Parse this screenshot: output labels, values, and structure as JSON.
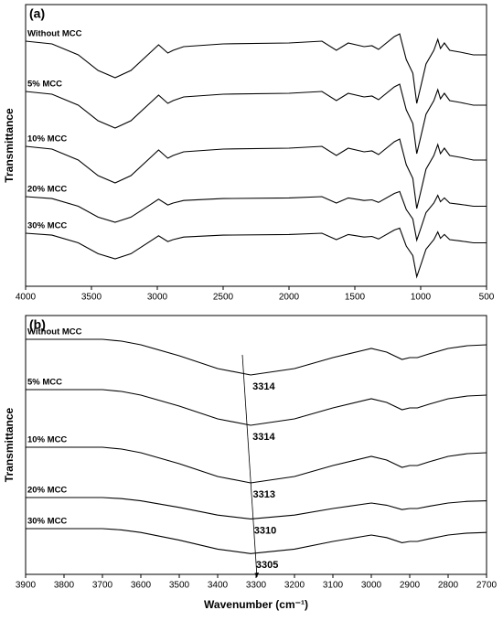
{
  "chart_data": [
    {
      "type": "line",
      "panel": "(a)",
      "ylabel": "Transmittance",
      "x": [
        4000,
        3800,
        3600,
        3450,
        3320,
        3200,
        3050,
        2990,
        2920,
        2880,
        2800,
        2500,
        2000,
        1750,
        1640,
        1550,
        1430,
        1370,
        1320,
        1200,
        1160,
        1110,
        1060,
        1030,
        1000,
        960,
        900,
        870,
        850,
        820,
        780,
        700,
        600,
        500
      ],
      "xlim": [
        4000,
        500
      ],
      "xticks": [
        4000,
        3500,
        3000,
        2500,
        2000,
        1500,
        1000,
        500
      ],
      "ylim": [
        0,
        308
      ],
      "series": [
        {
          "name": "Without MCC",
          "color": "#000000",
          "values": [
            268,
            265,
            253,
            236,
            228,
            236,
            256,
            264,
            255,
            258,
            262,
            265,
            266,
            268,
            258,
            266,
            262,
            263,
            259,
            273,
            276,
            248,
            233,
            200,
            218,
            243,
            258,
            270,
            260,
            266,
            258,
            256,
            253,
            253
          ]
        },
        {
          "name": "5% MCC",
          "color": "#000000",
          "values": [
            213,
            210,
            198,
            181,
            173,
            181,
            201,
            209,
            200,
            203,
            207,
            210,
            211,
            213,
            203,
            211,
            207,
            208,
            204,
            218,
            221,
            193,
            178,
            145,
            163,
            188,
            203,
            215,
            205,
            211,
            203,
            201,
            198,
            198
          ]
        },
        {
          "name": "10% MCC",
          "color": "#000000",
          "values": [
            153,
            150,
            138,
            121,
            113,
            121,
            141,
            149,
            140,
            143,
            147,
            150,
            151,
            153,
            143,
            151,
            147,
            148,
            144,
            158,
            161,
            133,
            118,
            85,
            103,
            128,
            143,
            155,
            145,
            151,
            143,
            141,
            138,
            138
          ]
        },
        {
          "name": "20% MCC",
          "color": "#000000",
          "values": [
            98,
            95.9,
            87.5,
            75.6,
            70,
            75.6,
            89.6,
            95.2,
            88.9,
            91,
            93.8,
            95.9,
            96.6,
            98,
            91,
            96.6,
            93.8,
            94.5,
            91.7,
            101.5,
            103.6,
            84,
            73.5,
            50.4,
            63,
            80.5,
            91,
            99.4,
            92.4,
            96.6,
            91,
            89.6,
            87.5,
            87.5
          ]
        },
        {
          "name": "30% MCC",
          "color": "#000000",
          "values": [
            58,
            55.9,
            47.5,
            35.6,
            30,
            35.6,
            49.6,
            55.2,
            48.9,
            51,
            53.8,
            55.9,
            56.6,
            58,
            51,
            56.6,
            53.8,
            54.5,
            51.7,
            61.5,
            63.6,
            44,
            33.5,
            10.4,
            23,
            40.5,
            51,
            59.4,
            52.4,
            56.6,
            51,
            49.6,
            47.5,
            47.5
          ]
        }
      ]
    },
    {
      "type": "line",
      "panel": "(b)",
      "ylabel": "Transmittance",
      "xlabel": "Wavenumber (cm⁻¹)",
      "x": [
        3900,
        3800,
        3700,
        3650,
        3600,
        3500,
        3400,
        3314,
        3200,
        3100,
        3000,
        2960,
        2920,
        2900,
        2880,
        2850,
        2800,
        2750,
        2700
      ],
      "xlim": [
        3900,
        2700
      ],
      "xticks": [
        3900,
        3800,
        3700,
        3600,
        3500,
        3400,
        3300,
        3200,
        3100,
        3000,
        2900,
        2800,
        2700
      ],
      "ylim": [
        0,
        283
      ],
      "peak_labels": [
        3314,
        3314,
        3313,
        3310,
        3305
      ],
      "series": [
        {
          "name": "Without MCC",
          "color": "#000000",
          "values": [
            257,
            257,
            257,
            255,
            251,
            239,
            225,
            218,
            225,
            237,
            247,
            243,
            235,
            237,
            237,
            241,
            247,
            250,
            251
          ]
        },
        {
          "name": "5% MCC",
          "color": "#000000",
          "values": [
            202,
            202,
            202,
            200,
            196,
            184,
            170,
            163,
            170,
            182,
            192,
            188,
            180,
            182,
            182,
            186,
            192,
            195,
            196
          ]
        },
        {
          "name": "10% MCC",
          "color": "#000000",
          "values": [
            139,
            139,
            139,
            137,
            133,
            121,
            107,
            100,
            107,
            119,
            129,
            125,
            117,
            119,
            119,
            123,
            129,
            132,
            133
          ]
        },
        {
          "name": "20% MCC",
          "color": "#000000",
          "values": [
            84,
            84,
            84,
            82.8,
            80.4,
            73.2,
            64.8,
            60.6,
            64.8,
            72,
            78,
            75.6,
            70.8,
            72,
            72,
            74.4,
            78,
            79.8,
            80.4
          ]
        },
        {
          "name": "30% MCC",
          "color": "#000000",
          "values": [
            50,
            50,
            50,
            48.6,
            45.8,
            37.4,
            27.6,
            22.7,
            27.6,
            36,
            43,
            40.2,
            34.6,
            36,
            36,
            38.8,
            43,
            45.1,
            45.8
          ]
        }
      ]
    }
  ]
}
